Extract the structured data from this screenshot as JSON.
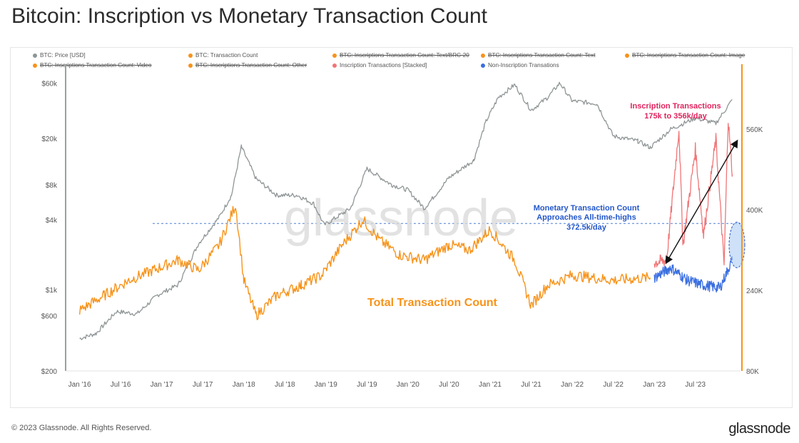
{
  "title": "Bitcoin: Inscription vs Monetary Transaction Count",
  "footer": {
    "copyright": "© 2023 Glassnode. All Rights Reserved.",
    "brand": "glassnode"
  },
  "colors": {
    "price": "#8f9596",
    "total": "#f7931a",
    "inscription": "#f07577",
    "noninscription": "#3b6fe0",
    "pink": "#e0245e",
    "blue": "#2457c9"
  },
  "chart_data": {
    "type": "line",
    "watermark": "glassnode",
    "legend": [
      {
        "label": "BTC: Price [USD]",
        "color": "#8f9596",
        "struck": false
      },
      {
        "label": "BTC: Transaction Count",
        "color": "#f7931a",
        "struck": false
      },
      {
        "label": "BTC: Inscriptions Transaction Count: Text/BRC-20",
        "color": "#f7931a",
        "struck": true
      },
      {
        "label": "BTC: Inscriptions Transaction Count: Text",
        "color": "#f7931a",
        "struck": true
      },
      {
        "label": "BTC: Inscriptions Transaction Count: Image",
        "color": "#f7931a",
        "struck": true
      },
      {
        "label": "BTC: Inscriptions Transaction Count: Video",
        "color": "#f7931a",
        "struck": true
      },
      {
        "label": "BTC: Inscriptions Transaction Count: Other",
        "color": "#f7931a",
        "struck": true
      },
      {
        "label": "Inscription Transactions [Stacked]",
        "color": "#f07577",
        "struck": false
      },
      {
        "label": "Non-Inscription Transations",
        "color": "#3b6fe0",
        "struck": false
      }
    ],
    "x_ticks": [
      "Jan '16",
      "Jul '16",
      "Jan '17",
      "Jul '17",
      "Jan '18",
      "Jul '18",
      "Jan '19",
      "Jul '19",
      "Jan '20",
      "Jul '20",
      "Jan '21",
      "Jul '21",
      "Jan '22",
      "Jul '22",
      "Jan '23",
      "Jul '23"
    ],
    "y_left": {
      "scale": "log",
      "range": [
        200,
        80000
      ],
      "ticks": [
        "$200",
        "$600",
        "$1k",
        "$4k",
        "$8k",
        "$20k",
        "$60k"
      ],
      "tick_values": [
        200,
        600,
        1000,
        4000,
        8000,
        20000,
        60000
      ]
    },
    "y_right": {
      "scale": "linear",
      "range": [
        80000,
        680000
      ],
      "ticks": [
        "80K",
        "240K",
        "400K",
        "560K"
      ],
      "tick_values": [
        80000,
        240000,
        400000,
        560000
      ]
    },
    "series": [
      {
        "name": "BTC: Price [USD]",
        "axis": "left",
        "x": [
          2016.0,
          2016.2,
          2016.45,
          2016.7,
          2016.95,
          2017.2,
          2017.45,
          2017.7,
          2017.85,
          2017.97,
          2018.15,
          2018.4,
          2018.65,
          2018.85,
          2018.98,
          2019.3,
          2019.5,
          2019.8,
          2020.0,
          2020.2,
          2020.5,
          2020.8,
          2020.95,
          2021.1,
          2021.3,
          2021.5,
          2021.7,
          2021.85,
          2022.0,
          2022.3,
          2022.5,
          2022.8,
          2022.95,
          2023.2,
          2023.5,
          2023.75,
          2023.95
        ],
        "values": [
          380,
          420,
          650,
          620,
          900,
          1100,
          2500,
          4200,
          6500,
          17000,
          9000,
          6500,
          6500,
          5500,
          3600,
          5000,
          11000,
          8000,
          7200,
          5000,
          9200,
          13000,
          28000,
          45000,
          58000,
          35000,
          45000,
          60000,
          42000,
          40000,
          21000,
          19000,
          16700,
          24000,
          30000,
          27000,
          43000
        ]
      },
      {
        "name": "BTC: Transaction Count",
        "axis": "right",
        "x": [
          2016.0,
          2016.3,
          2016.6,
          2016.9,
          2017.2,
          2017.45,
          2017.7,
          2017.9,
          2018.0,
          2018.15,
          2018.4,
          2018.7,
          2018.95,
          2019.2,
          2019.45,
          2019.65,
          2019.9,
          2020.2,
          2020.5,
          2020.75,
          2021.0,
          2021.3,
          2021.5,
          2021.7,
          2022.0,
          2022.5,
          2022.95
        ],
        "values": [
          200000,
          230000,
          260000,
          280000,
          300000,
          280000,
          330000,
          410000,
          260000,
          190000,
          230000,
          250000,
          270000,
          330000,
          380000,
          340000,
          310000,
          300000,
          330000,
          320000,
          360000,
          300000,
          210000,
          250000,
          270000,
          260000,
          265000
        ]
      },
      {
        "name": "Inscription Transactions [Stacked]",
        "axis": "right",
        "x": [
          2023.0,
          2023.15,
          2023.3,
          2023.35,
          2023.5,
          2023.6,
          2023.75,
          2023.85,
          2023.9,
          2023.95
        ],
        "values": [
          295000,
          300000,
          560000,
          330000,
          520000,
          350000,
          540000,
          290000,
          580000,
          470000
        ]
      },
      {
        "name": "Non-Inscription Transations",
        "axis": "right",
        "x": [
          2023.0,
          2023.2,
          2023.4,
          2023.6,
          2023.8,
          2023.95
        ],
        "values": [
          265000,
          285000,
          260000,
          250000,
          245000,
          300000
        ]
      }
    ],
    "annotations": [
      {
        "text": "Inscription Transactions",
        "color": "#e0245e"
      },
      {
        "text": "175k to 356k/day",
        "color": "#e0245e"
      },
      {
        "text": "Monetary Transaction Count",
        "color": "#2457c9"
      },
      {
        "text": "Approaches All-time-highs",
        "color": "#2457c9"
      },
      {
        "text": "372.5k/day",
        "color": "#2457c9"
      },
      {
        "text": "Total Transaction Count",
        "color": "#f7931a"
      }
    ],
    "reference_line": {
      "value": 372500,
      "axis": "right",
      "style": "dashed"
    }
  }
}
